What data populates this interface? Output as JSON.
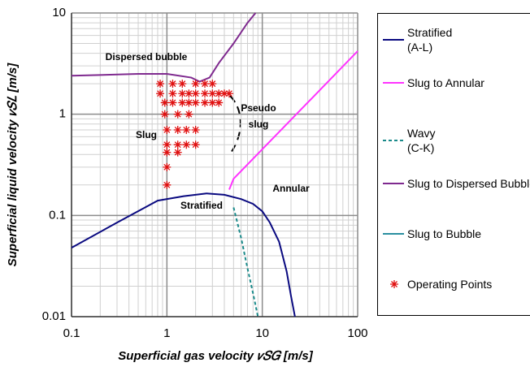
{
  "chart_data": {
    "type": "line",
    "xlabel": "Superficial gas velocity 𝑣𝑆𝐺 [m/s]",
    "ylabel": "Superficial liquid velocity 𝑣𝑆𝐿 [m/s]",
    "xscale": "log",
    "yscale": "log",
    "xlim": [
      0.1,
      100
    ],
    "ylim": [
      0.01,
      10
    ],
    "xticks": [
      0.1,
      1,
      10,
      100
    ],
    "yticks": [
      0.01,
      0.1,
      1,
      10
    ],
    "grid": true,
    "annotations": [
      "Dispersed bubble",
      "Slug",
      "Pseudo\nslug",
      "Annular",
      "Stratified"
    ],
    "series": [
      {
        "name": "Stratified\n(A-L)",
        "color": "#0a0a80",
        "style": "solid",
        "x": [
          0.1,
          0.3,
          0.8,
          1.5,
          2.6,
          4,
          6,
          8,
          10,
          12,
          15,
          18,
          20,
          22
        ],
        "values": [
          0.048,
          0.085,
          0.14,
          0.155,
          0.165,
          0.16,
          0.145,
          0.13,
          0.11,
          0.085,
          0.055,
          0.028,
          0.016,
          0.01
        ]
      },
      {
        "name": "Slug to Annular",
        "color": "#ff33ff",
        "style": "solid",
        "x": [
          4.5,
          5,
          100
        ],
        "values": [
          0.18,
          0.23,
          4.2
        ]
      },
      {
        "name": "Wavy\n(C-K)",
        "color": "#1a8a8a",
        "style": "dashed",
        "x": [
          5,
          6,
          7,
          8,
          9
        ],
        "values": [
          0.12,
          0.06,
          0.03,
          0.017,
          0.01
        ]
      },
      {
        "name": "Slug to Dispersed Bubble",
        "color": "#7f2a8f",
        "style": "solid",
        "x": [
          0.1,
          0.5,
          1,
          1.8,
          2.2,
          2.8,
          3.5,
          5,
          7,
          8.5
        ],
        "values": [
          2.4,
          2.5,
          2.5,
          2.3,
          2.1,
          2.3,
          3.2,
          5,
          8,
          10
        ]
      },
      {
        "name": "Slug to Bubble",
        "color": "#2a8fa0",
        "style": "solid",
        "x": [],
        "values": []
      },
      {
        "name": "Operating Points",
        "color": "#e01010",
        "style": "marker",
        "x": [
          0.85,
          0.85,
          0.95,
          0.95,
          1,
          1,
          1,
          1,
          1,
          1.15,
          1.15,
          1.15,
          1.3,
          1.3,
          1.3,
          1.3,
          1.45,
          1.45,
          1.45,
          1.7,
          1.7,
          1.7,
          1.6,
          1.6,
          2,
          2,
          2,
          2,
          2,
          2.5,
          2.5,
          2.5,
          3,
          3,
          3,
          3.5,
          3.5,
          4,
          4.5
        ],
        "values": [
          2,
          1.6,
          1.3,
          1,
          0.7,
          0.5,
          0.42,
          0.3,
          0.2,
          2,
          1.6,
          1.3,
          1,
          0.7,
          0.5,
          0.42,
          2,
          1.6,
          1.3,
          1.6,
          1.3,
          1,
          0.7,
          0.5,
          2,
          1.6,
          1.3,
          0.7,
          0.5,
          2,
          1.6,
          1.3,
          2,
          1.6,
          1.3,
          1.6,
          1.3,
          1.6,
          1.6
        ]
      }
    ]
  }
}
